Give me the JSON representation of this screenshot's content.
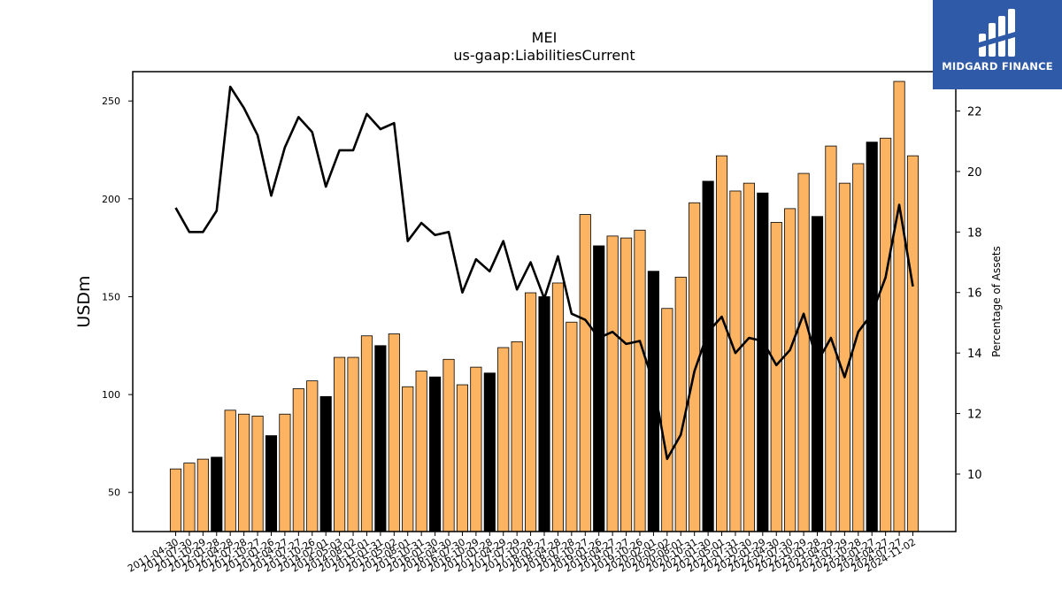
{
  "brand": {
    "name": "MIDGARD FINANCE",
    "bg": "#2f5aa8"
  },
  "chart_data": {
    "type": "bar",
    "title": "MEI",
    "subtitle": "us-gaap:LiabilitiesCurrent",
    "ylabel": "USDm",
    "y2label": "Percentage of Assets",
    "ylim": [
      30,
      265
    ],
    "y2lim": [
      8.1,
      23.3
    ],
    "yticks": [
      50,
      100,
      150,
      200,
      250
    ],
    "y2ticks": [
      10,
      12,
      14,
      16,
      18,
      20,
      22
    ],
    "grid": false,
    "bar_colors": {
      "regular": "#fdb462",
      "fiscal_year_end": "#000000"
    },
    "categories": [
      "2011-04-30",
      "2011-07-30",
      "2011-10-29",
      "2012-01-28",
      "2012-04-28",
      "2012-07-28",
      "2012-10-27",
      "2013-01-26",
      "2013-04-27",
      "2013-07-27",
      "2013-10-26",
      "2014-02-01",
      "2014-05-03",
      "2014-08-02",
      "2014-11-01",
      "2015-01-31",
      "2015-05-02",
      "2015-08-01",
      "2015-10-31",
      "2016-01-30",
      "2016-04-30",
      "2016-07-30",
      "2016-10-29",
      "2017-01-28",
      "2017-04-29",
      "2017-07-29",
      "2017-10-28",
      "2018-01-27",
      "2018-04-28",
      "2018-07-28",
      "2018-10-27",
      "2019-01-26",
      "2019-04-27",
      "2019-07-27",
      "2019-10-26",
      "2020-02-01",
      "2020-05-02",
      "2020-08-01",
      "2020-10-31",
      "2021-01-30",
      "2021-05-01",
      "2021-07-31",
      "2021-10-30",
      "2022-01-29",
      "2022-04-30",
      "2022-07-30",
      "2022-10-29",
      "2023-01-28",
      "2023-04-29",
      "2023-07-29",
      "2023-10-28",
      "2024-01-27",
      "2024-04-27",
      "2024-07-27",
      "2024-11-02"
    ],
    "series": [
      {
        "type": "bar",
        "axis": "left",
        "values": [
          62,
          65,
          67,
          68,
          92,
          90,
          89,
          79,
          90,
          103,
          107,
          99,
          119,
          119,
          130,
          125,
          131,
          104,
          112,
          109,
          118,
          105,
          114,
          111,
          124,
          127,
          152,
          150,
          157,
          137,
          192,
          176,
          181,
          180,
          184,
          163,
          144,
          160,
          198,
          209,
          222,
          204,
          208,
          203,
          188,
          195,
          213,
          191,
          227,
          208,
          218,
          229,
          231,
          260,
          222
        ],
        "fiscal_year_end": [
          false,
          false,
          false,
          true,
          false,
          false,
          false,
          true,
          false,
          false,
          false,
          true,
          false,
          false,
          false,
          true,
          false,
          false,
          false,
          true,
          false,
          false,
          false,
          true,
          false,
          false,
          false,
          true,
          false,
          false,
          false,
          true,
          false,
          false,
          false,
          true,
          false,
          false,
          false,
          true,
          false,
          false,
          false,
          true,
          false,
          false,
          false,
          true,
          false,
          false,
          false,
          true,
          false,
          false,
          false
        ]
      },
      {
        "type": "line",
        "axis": "right",
        "color": "#000000",
        "values": [
          18.8,
          18.0,
          18.0,
          18.7,
          22.8,
          22.1,
          21.2,
          19.2,
          20.8,
          21.8,
          21.3,
          19.5,
          20.7,
          20.7,
          21.9,
          21.4,
          21.6,
          17.7,
          18.3,
          17.9,
          18.0,
          16.0,
          17.1,
          16.7,
          17.7,
          16.1,
          17.0,
          15.8,
          17.2,
          15.3,
          15.1,
          14.5,
          14.7,
          14.3,
          14.4,
          13.0,
          10.5,
          11.3,
          13.4,
          14.7,
          15.2,
          14.0,
          14.5,
          14.4,
          13.6,
          14.1,
          15.3,
          13.7,
          14.5,
          13.2,
          14.7,
          15.3,
          16.5,
          18.9,
          16.2
        ]
      }
    ]
  }
}
